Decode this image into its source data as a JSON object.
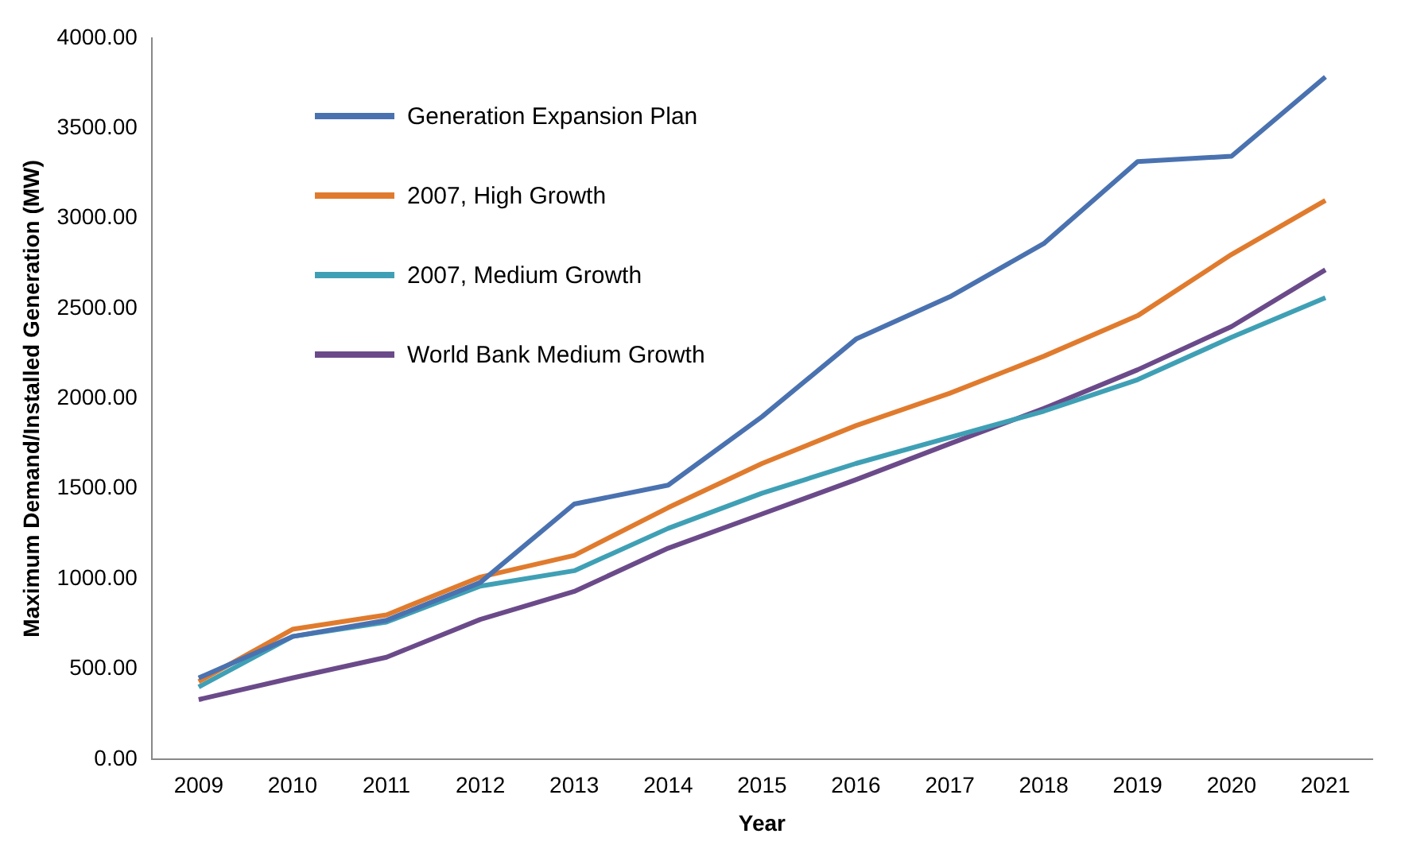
{
  "chart_data": {
    "type": "line",
    "xlabel": "Year",
    "ylabel": "Maximum Demand/Installed Generation (MW)",
    "categories": [
      "2009",
      "2010",
      "2011",
      "2012",
      "2013",
      "2014",
      "2015",
      "2016",
      "2017",
      "2018",
      "2019",
      "2020",
      "2021"
    ],
    "series": [
      {
        "name": "Generation Expansion Plan",
        "color": "#4a72b0",
        "values": [
          450,
          680,
          770,
          980,
          1415,
          1520,
          1900,
          2330,
          2565,
          2860,
          3315,
          3345,
          3785
        ]
      },
      {
        "name": "2007, High Growth",
        "color": "#e07b2e",
        "values": [
          430,
          720,
          800,
          1010,
          1130,
          1395,
          1640,
          1850,
          2030,
          2235,
          2460,
          2800,
          3100
        ]
      },
      {
        "name": "2007, Medium Growth",
        "color": "#3fa0b5",
        "values": [
          400,
          680,
          760,
          960,
          1045,
          1280,
          1475,
          1640,
          1785,
          1930,
          2105,
          2340,
          2560
        ]
      },
      {
        "name": "World Bank Medium Growth",
        "color": "#6b4a8a",
        "values": [
          330,
          450,
          565,
          775,
          930,
          1170,
          1360,
          1550,
          1750,
          1945,
          2160,
          2400,
          2715
        ]
      }
    ],
    "ylim": [
      0,
      4000
    ],
    "yticks": [
      {
        "value": 0,
        "label": "0.00"
      },
      {
        "value": 500,
        "label": "500.00"
      },
      {
        "value": 1000,
        "label": "1000.00"
      },
      {
        "value": 1500,
        "label": "1500.00"
      },
      {
        "value": 2000,
        "label": "2000.00"
      },
      {
        "value": 2500,
        "label": "2500.00"
      },
      {
        "value": 3000,
        "label": "3000.00"
      },
      {
        "value": 3500,
        "label": "3500.00"
      },
      {
        "value": 4000,
        "label": "4000.00"
      }
    ],
    "grid": false,
    "legend": "top left",
    "marker": "none",
    "line_style": "solid"
  }
}
